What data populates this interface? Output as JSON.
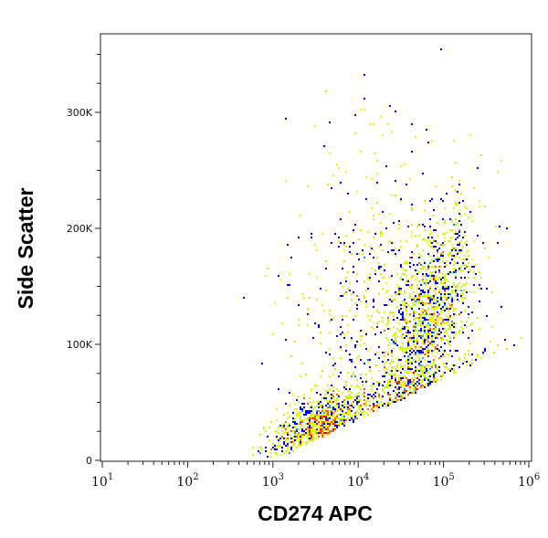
{
  "chart_data": {
    "type": "scatter",
    "subtype": "flow-cytometry-density-dot-plot",
    "title": "",
    "xlabel": "CD274 APC",
    "ylabel": "Side Scatter",
    "x_scale": "log",
    "xlim": [
      10,
      1000000
    ],
    "ylim": [
      0,
      368000
    ],
    "x_ticks": [
      {
        "base": "10",
        "exp": "1"
      },
      {
        "base": "10",
        "exp": "2"
      },
      {
        "base": "10",
        "exp": "3"
      },
      {
        "base": "10",
        "exp": "4"
      },
      {
        "base": "10",
        "exp": "5"
      },
      {
        "base": "10",
        "exp": "6"
      }
    ],
    "y_ticks": [
      {
        "value": 0,
        "label": "0"
      },
      {
        "value": 100000,
        "label": "100K"
      },
      {
        "value": 200000,
        "label": "200K"
      },
      {
        "value": 300000,
        "label": "300K"
      }
    ],
    "grid": false,
    "color_scale": [
      "#0000ff",
      "#00c8ff",
      "#00e060",
      "#ffff00",
      "#ff0000"
    ],
    "populations": [
      {
        "x_center": 3500,
        "y_center": 28000,
        "density": "high"
      },
      {
        "x_center": 70000,
        "y_center": 120000,
        "density": "highest"
      },
      {
        "x_center": 15000,
        "y_center": 110000,
        "density": "diffuse"
      }
    ]
  }
}
